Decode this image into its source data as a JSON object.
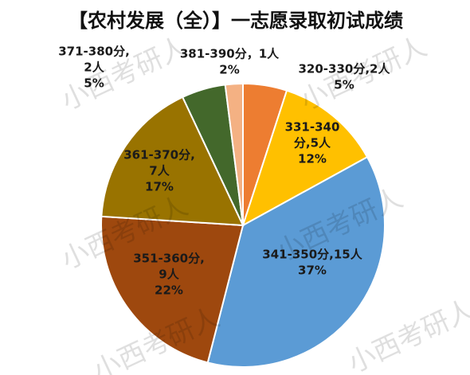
{
  "chart_data": {
    "type": "pie",
    "title": "【农村发展（全）】一志愿录取初试成绩",
    "labels": [
      [
        "320-330分,2人"
      ],
      [
        "331-340",
        "分,5人"
      ],
      [
        "341-350分,15人"
      ],
      [
        "351-360分,",
        "9人"
      ],
      [
        "361-370分,",
        "7人"
      ],
      [
        "371-380分,",
        "2人"
      ],
      [
        "381-390分，1人"
      ]
    ],
    "counts": [
      2,
      5,
      15,
      9,
      7,
      2,
      1
    ],
    "values": [
      5,
      12,
      37,
      22,
      17,
      5,
      2
    ],
    "value_labels": [
      "5%",
      "12%",
      "37%",
      "22%",
      "17%",
      "5%",
      "2%"
    ],
    "colors": [
      "#ed7d31",
      "#ffc000",
      "#5b9bd5",
      "#9e480e",
      "#997300",
      "#43682b",
      "#f4b183"
    ],
    "watermark": "小西考研人"
  }
}
